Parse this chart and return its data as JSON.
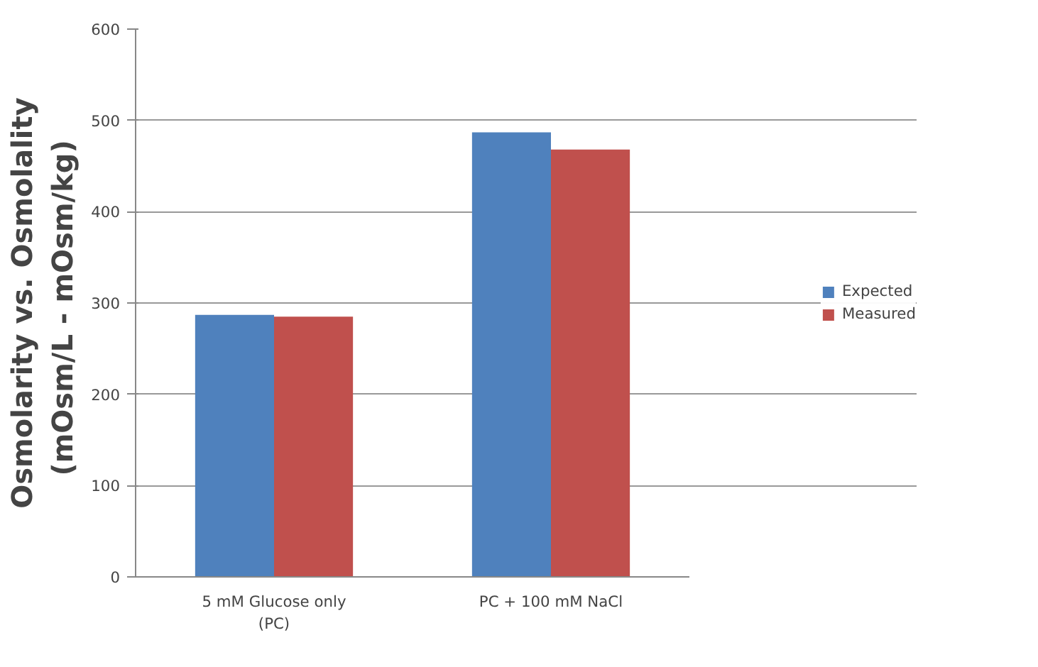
{
  "chart_data": {
    "type": "bar",
    "ylabel": "Osmolarity vs. Osmolality\n(mOsm/L  - mOsm/kg)",
    "categories": [
      "5 mM Glucose only\n(PC)",
      "PC + 100 mM NaCl"
    ],
    "series": [
      {
        "name": "Expected",
        "color": "#4f81bd",
        "values": [
          287,
          487
        ]
      },
      {
        "name": "Measured",
        "color": "#c0504d",
        "values": [
          285,
          468
        ]
      }
    ],
    "ylim": [
      0,
      600
    ],
    "yticks": [
      0,
      100,
      200,
      300,
      400,
      500,
      600
    ],
    "grid": "y",
    "legend": "right"
  }
}
